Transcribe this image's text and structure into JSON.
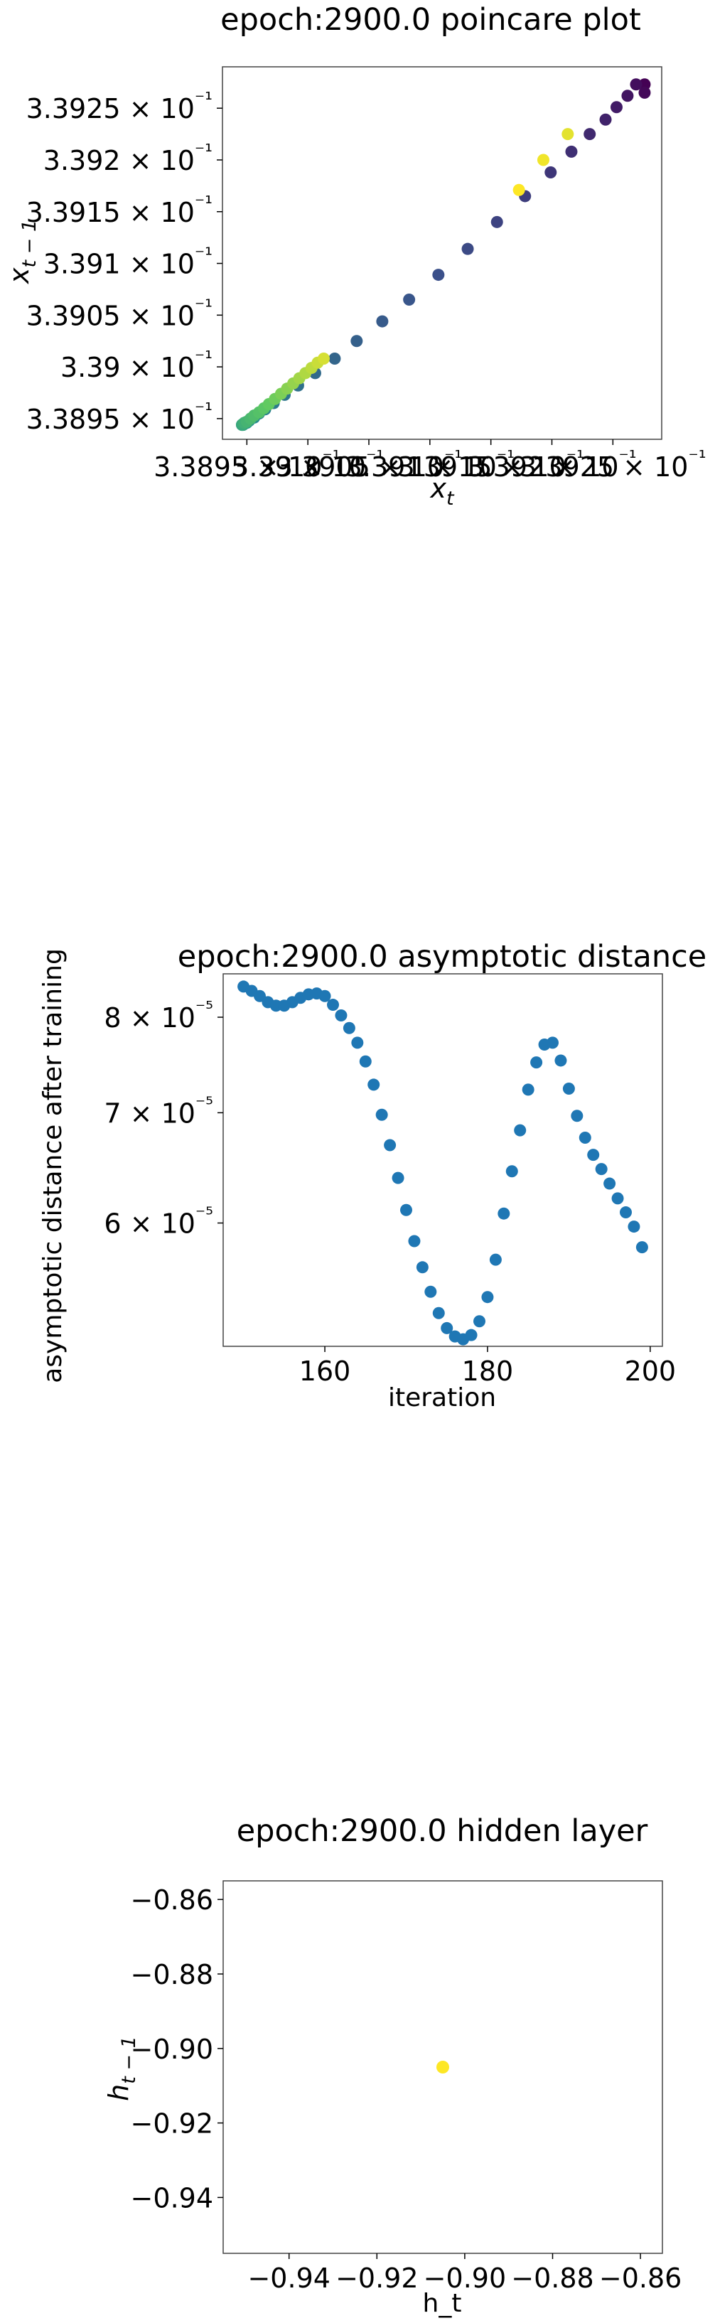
{
  "chart_data": [
    {
      "type": "scatter",
      "title": "epoch:2900.0 poincare plot",
      "xlabel": "x_t",
      "ylabel": "x_{t-1}",
      "xlim": [
        0.33893,
        0.33929
      ],
      "ylim": [
        0.33893,
        0.33929
      ],
      "x_tick_labels": [
        "3.3895 × 10⁻¹",
        "3.39 × 10⁻¹",
        "3.3905 × 10⁻¹",
        "3.391 × 10⁻¹",
        "3.3915 × 10⁻¹",
        "3.392 × 10⁻¹",
        "3.3925 × 10⁻¹"
      ],
      "x_tick_values": [
        0.33895,
        0.339,
        0.33905,
        0.3391,
        0.33915,
        0.3392,
        0.33925
      ],
      "y_tick_labels": [
        "3.3895 × 10⁻¹",
        "3.39 × 10⁻¹",
        "3.3905 × 10⁻¹",
        "3.391 × 10⁻¹",
        "3.3915 × 10⁻¹",
        "3.392 × 10⁻¹",
        "3.3925 × 10⁻¹"
      ],
      "y_tick_values": [
        0.33895,
        0.339,
        0.33905,
        0.3391,
        0.33915,
        0.3392,
        0.33925
      ],
      "colormap": [
        "#440154",
        "#3b528b",
        "#21918c",
        "#5ec962",
        "#fde725"
      ],
      "points": [
        [
          0.339276,
          0.339273
        ],
        [
          0.339276,
          0.339265
        ],
        [
          0.339269,
          0.339273
        ],
        [
          0.339262,
          0.339262
        ],
        [
          0.339253,
          0.339251
        ],
        [
          0.339244,
          0.339239
        ],
        [
          0.339231,
          0.339225
        ],
        [
          0.339216,
          0.339208
        ],
        [
          0.339199,
          0.339188
        ],
        [
          0.339178,
          0.339165
        ],
        [
          0.339155,
          0.33914
        ],
        [
          0.339131,
          0.339114
        ],
        [
          0.339107,
          0.339089
        ],
        [
          0.339083,
          0.339065
        ],
        [
          0.339061,
          0.339044
        ],
        [
          0.33904,
          0.339025
        ],
        [
          0.339022,
          0.339008
        ],
        [
          0.339006,
          0.338994
        ],
        [
          0.338992,
          0.338982
        ],
        [
          0.338981,
          0.338973
        ],
        [
          0.338972,
          0.338965
        ],
        [
          0.338965,
          0.338959
        ],
        [
          0.33896,
          0.338955
        ],
        [
          0.338956,
          0.338951
        ],
        [
          0.338952,
          0.338948
        ],
        [
          0.33895,
          0.338946
        ],
        [
          0.338948,
          0.338945
        ],
        [
          0.338947,
          0.338944
        ],
        [
          0.338946,
          0.338944
        ],
        [
          0.338946,
          0.338944
        ],
        [
          0.338947,
          0.338945
        ],
        [
          0.338948,
          0.338946
        ],
        [
          0.33895,
          0.338947
        ],
        [
          0.338953,
          0.33895
        ],
        [
          0.338956,
          0.338953
        ],
        [
          0.33896,
          0.338956
        ],
        [
          0.338964,
          0.33896
        ],
        [
          0.338968,
          0.338964
        ],
        [
          0.338973,
          0.338969
        ],
        [
          0.338978,
          0.338974
        ],
        [
          0.338983,
          0.338979
        ],
        [
          0.338988,
          0.338984
        ],
        [
          0.338993,
          0.338989
        ],
        [
          0.338998,
          0.338994
        ],
        [
          0.339003,
          0.338999
        ],
        [
          0.339008,
          0.339004
        ],
        [
          0.339013,
          0.339008
        ],
        [
          0.339213,
          0.339225
        ],
        [
          0.339193,
          0.3392
        ],
        [
          0.339173,
          0.339171
        ]
      ]
    },
    {
      "type": "scatter",
      "title": "epoch:2900.0 asymptotic distance",
      "xlabel": "iteration",
      "ylabel": "asymptotic distance after training",
      "y_scale": "log",
      "xlim": [
        147.5,
        201.5
      ],
      "ylim": [
        5.05e-05,
        8.5e-05
      ],
      "x_ticks": [
        160,
        180,
        200
      ],
      "x_tick_labels": [
        "160",
        "180",
        "200"
      ],
      "y_ticks": [
        6e-05,
        7e-05,
        8e-05
      ],
      "y_tick_labels": [
        "6 × 10⁻⁵",
        "7 × 10⁻⁵",
        "8 × 10⁻⁵"
      ],
      "color": "#1f77b4",
      "x": [
        150,
        151,
        152,
        153,
        154,
        155,
        156,
        157,
        158,
        159,
        160,
        161,
        162,
        163,
        164,
        165,
        166,
        167,
        168,
        169,
        170,
        171,
        172,
        173,
        174,
        175,
        176,
        177,
        178,
        179,
        180,
        181,
        182,
        183,
        184,
        185,
        186,
        187,
        188,
        189,
        190,
        191,
        192,
        193,
        194,
        195,
        196,
        197,
        198,
        199
      ],
      "y": [
        8.35e-05,
        8.3e-05,
        8.24e-05,
        8.17e-05,
        8.13e-05,
        8.13e-05,
        8.17e-05,
        8.22e-05,
        8.26e-05,
        8.27e-05,
        8.24e-05,
        8.14e-05,
        8.02e-05,
        7.88e-05,
        7.72e-05,
        7.52e-05,
        7.28e-05,
        6.98e-05,
        6.69e-05,
        6.39e-05,
        6.11e-05,
        5.85e-05,
        5.64e-05,
        5.45e-05,
        5.29e-05,
        5.18e-05,
        5.12e-05,
        5.1e-05,
        5.13e-05,
        5.23e-05,
        5.41e-05,
        5.7e-05,
        6.08e-05,
        6.45e-05,
        6.83e-05,
        7.23e-05,
        7.51e-05,
        7.7e-05,
        7.72e-05,
        7.53e-05,
        7.24e-05,
        6.97e-05,
        6.76e-05,
        6.6e-05,
        6.47e-05,
        6.34e-05,
        6.21e-05,
        6.09e-05,
        5.97e-05,
        5.8e-05
      ]
    },
    {
      "type": "scatter",
      "title": "epoch:2900.0 hidden layer",
      "xlabel": "h_t",
      "ylabel": "h_{t-1}",
      "xlim": [
        -0.955,
        -0.855
      ],
      "ylim": [
        -0.955,
        -0.855
      ],
      "x_ticks": [
        -0.94,
        -0.92,
        -0.9,
        -0.88,
        -0.86
      ],
      "x_tick_labels": [
        "−0.94",
        "−0.92",
        "−0.90",
        "−0.88",
        "−0.86"
      ],
      "y_ticks": [
        -0.94,
        -0.92,
        -0.9,
        -0.88,
        -0.86
      ],
      "y_tick_labels": [
        "−0.94",
        "−0.92",
        "−0.90",
        "−0.88",
        "−0.86"
      ],
      "color": "#fde725",
      "points": [
        [
          -0.905,
          -0.905
        ]
      ]
    }
  ]
}
